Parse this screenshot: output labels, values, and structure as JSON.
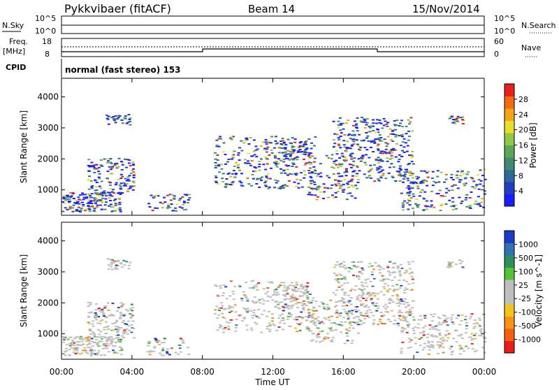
{
  "header": {
    "title": "Pykkvibaer (fitACF)",
    "beam": "Beam 14",
    "date": "15/Nov/2014"
  },
  "top_panels": {
    "nsky": {
      "left_label": "N.Sky",
      "right_label": "N.Search",
      "ticks_left": [
        "10^5",
        "10^0"
      ],
      "ticks_right": [
        "10^5",
        "10^0"
      ]
    },
    "freq": {
      "left_label_1": "Freq.",
      "left_label_2": "[MHz]",
      "ticks_left": [
        "18",
        "8"
      ],
      "right_label": "Nave",
      "ticks_right": [
        "60",
        "0"
      ]
    },
    "cpid": {
      "label": "CPID",
      "text": "normal (fast stereo) 153"
    }
  },
  "chart_data": [
    {
      "type": "heatmap",
      "title": "",
      "ylabel": "Slant Range [km]",
      "ylim": [
        180,
        4600
      ],
      "y_ticks": [
        "1000",
        "2000",
        "3000",
        "4000"
      ],
      "x_ticks": [
        "00:00",
        "04:00",
        "08:00",
        "12:00",
        "16:00",
        "20:00",
        "00:00"
      ],
      "colorbar": {
        "label": "Power [dB]",
        "ticks": [
          "4",
          "8",
          "12",
          "16",
          "20",
          "24",
          "28"
        ],
        "colors": [
          "#1b1bff",
          "#1f3fbe",
          "#2a6b9a",
          "#3f8a70",
          "#5ca65a",
          "#8fc84a",
          "#e8df2a",
          "#f7a21b",
          "#f26b13",
          "#e4211e"
        ]
      }
    },
    {
      "type": "heatmap",
      "title": "",
      "ylabel": "Slant Range [km]",
      "xlabel": "Time UT",
      "ylim": [
        180,
        4600
      ],
      "y_ticks": [
        "1000",
        "2000",
        "3000",
        "4000"
      ],
      "x_ticks": [
        "00:00",
        "04:00",
        "08:00",
        "12:00",
        "16:00",
        "20:00",
        "00:00"
      ],
      "colorbar": {
        "label": "Velocity [m s^-1]",
        "ticks": [
          "1000",
          "500",
          "100",
          "25",
          "-25",
          "-100",
          "-500",
          "-1000"
        ],
        "colors": [
          "#1c3cc8",
          "#2f73b4",
          "#2f8f59",
          "#57c13a",
          "#bfbfbf",
          "#bfbfbf",
          "#f0c61d",
          "#f79416",
          "#f26012",
          "#e81e1e"
        ]
      }
    }
  ]
}
